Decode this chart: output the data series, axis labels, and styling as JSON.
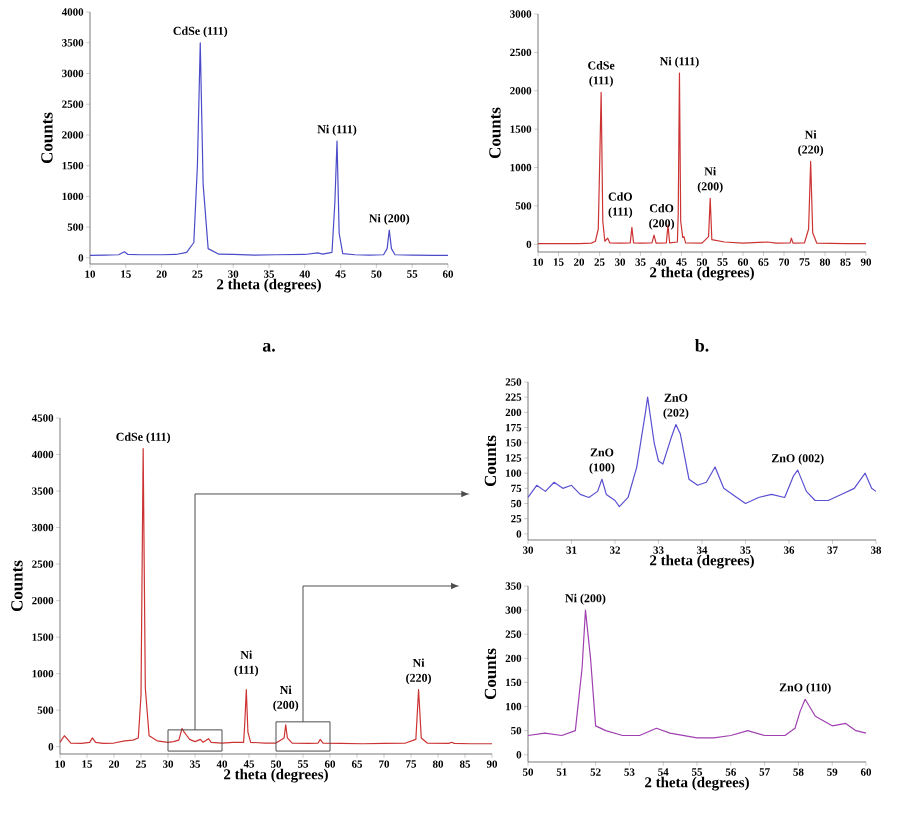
{
  "chart_data": [
    {
      "type": "line",
      "xlabel": "2 theta (degrees)",
      "ylabel": "Counts",
      "color": "#4b4bc8",
      "x": [
        10,
        12,
        14,
        14.8,
        15.3,
        17,
        20,
        22,
        23.5,
        24.5,
        25,
        25.4,
        25.8,
        26.5,
        28,
        30,
        33,
        36,
        40,
        41.8,
        42.5,
        43.8,
        44.2,
        44.5,
        44.8,
        45.3,
        47,
        49,
        51,
        51.5,
        51.8,
        52.1,
        52.6,
        55,
        58,
        60
      ],
      "values": [
        40,
        45,
        50,
        100,
        55,
        50,
        50,
        55,
        90,
        250,
        1500,
        3500,
        1200,
        150,
        60,
        55,
        45,
        50,
        55,
        80,
        60,
        90,
        900,
        1900,
        400,
        70,
        50,
        45,
        50,
        150,
        450,
        150,
        50,
        45,
        40,
        40
      ],
      "xlim": [
        10,
        60
      ],
      "xticks": [
        10,
        15,
        20,
        25,
        30,
        35,
        40,
        45,
        50,
        55,
        60
      ],
      "ylim": [
        -100,
        4000
      ],
      "yticks": [
        0,
        500,
        1000,
        1500,
        2000,
        2500,
        3000,
        3500,
        4000
      ],
      "annotations": [
        {
          "text": "CdSe (111)",
          "x": 25.4,
          "y": 3500
        },
        {
          "text": "Ni (111)",
          "x": 44.5,
          "y": 1900
        },
        {
          "text": "Ni (200)",
          "x": 51.8,
          "y": 450
        },
        "a."
      ]
    },
    {
      "type": "line",
      "xlabel": "2 theta (degrees)",
      "ylabel": "Counts",
      "color": "#cc3333",
      "x": [
        10,
        15,
        20,
        23,
        24,
        24.7,
        25.1,
        25.4,
        25.8,
        26.3,
        27,
        27.5,
        30,
        32.5,
        32.9,
        33.3,
        35,
        37.8,
        38.3,
        38.8,
        41.3,
        41.7,
        42.1,
        44,
        44.2,
        44.5,
        44.8,
        45.3,
        45.6,
        46,
        50,
        51.6,
        52,
        52.4,
        55.5,
        60,
        66,
        68,
        71.5,
        71.8,
        72.2,
        75,
        76,
        76.5,
        77,
        78,
        85,
        90
      ],
      "values": [
        10,
        10,
        10,
        15,
        40,
        200,
        1200,
        1980,
        300,
        40,
        80,
        20,
        15,
        20,
        220,
        20,
        15,
        20,
        120,
        15,
        20,
        250,
        20,
        30,
        400,
        2230,
        300,
        90,
        100,
        20,
        15,
        100,
        600,
        60,
        30,
        15,
        30,
        15,
        20,
        80,
        15,
        20,
        200,
        1080,
        150,
        15,
        10,
        10
      ],
      "xlim": [
        10,
        90
      ],
      "xticks": [
        10,
        15,
        20,
        25,
        30,
        35,
        40,
        45,
        50,
        55,
        60,
        65,
        70,
        75,
        80,
        85,
        90
      ],
      "ylim": [
        -100,
        3000
      ],
      "yticks": [
        0,
        500,
        1000,
        1500,
        2000,
        2500,
        3000
      ],
      "annotations": [
        {
          "text": "CdSe (111)",
          "x": 25.4,
          "y": 1980
        },
        {
          "text": "CdO (111)",
          "x": 32.9,
          "y": 220
        },
        {
          "text": "CdO (200)",
          "x": 38.3,
          "y": 120
        },
        {
          "text": "Ni (111)",
          "x": 44.5,
          "y": 2230
        },
        {
          "text": "Ni (200)",
          "x": 52,
          "y": 600
        },
        {
          "text": "Ni (220)",
          "x": 76.5,
          "y": 1080
        },
        "b."
      ]
    },
    {
      "type": "line",
      "xlabel": "2 theta (degrees)",
      "ylabel": "Counts",
      "color": "#cc3333",
      "x": [
        10,
        10.8,
        11.3,
        12,
        14,
        15.5,
        16,
        16.6,
        18,
        20,
        22,
        23.5,
        24.5,
        25,
        25.4,
        25.8,
        26.5,
        28,
        30,
        31,
        32,
        32.6,
        33,
        33.4,
        34,
        35,
        36,
        36.5,
        37.5,
        38,
        40,
        42,
        44,
        44.2,
        44.5,
        44.8,
        45.3,
        48,
        50,
        51.5,
        51.8,
        52.1,
        53,
        56,
        57.8,
        58.2,
        58.7,
        62,
        66,
        70,
        74,
        75.9,
        76.4,
        76.9,
        78,
        82,
        82.5,
        83,
        86,
        90
      ],
      "values": [
        60,
        150,
        110,
        50,
        45,
        60,
        120,
        60,
        45,
        50,
        80,
        90,
        120,
        700,
        4080,
        800,
        150,
        80,
        60,
        70,
        90,
        250,
        200,
        160,
        100,
        70,
        100,
        60,
        110,
        60,
        50,
        60,
        60,
        300,
        780,
        200,
        60,
        50,
        50,
        120,
        300,
        120,
        50,
        45,
        50,
        100,
        50,
        45,
        40,
        45,
        50,
        100,
        780,
        120,
        50,
        45,
        60,
        45,
        40,
        40
      ],
      "xlim": [
        10,
        90
      ],
      "xticks": [
        10,
        15,
        20,
        25,
        30,
        35,
        40,
        45,
        50,
        55,
        60,
        65,
        70,
        75,
        80,
        85,
        90
      ],
      "ylim": [
        -100,
        4500
      ],
      "yticks": [
        0,
        500,
        1000,
        1500,
        2000,
        2500,
        3000,
        3500,
        4000,
        4500
      ],
      "annotations": [
        {
          "text": "CdSe (111)",
          "x": 25.4,
          "y": 4080
        },
        {
          "text": "Ni (111)",
          "x": 44.5,
          "y": 780
        },
        {
          "text": "Ni (200)",
          "x": 51.8,
          "y": 300
        },
        {
          "text": "Ni (220)",
          "x": 76.4,
          "y": 780
        }
      ]
    },
    {
      "type": "line",
      "xlabel": "2 theta (degrees)",
      "ylabel": "Counts",
      "color": "#5a50d0",
      "x": [
        30,
        30.2,
        30.4,
        30.6,
        30.8,
        31,
        31.2,
        31.4,
        31.6,
        31.7,
        31.8,
        32,
        32.1,
        32.3,
        32.5,
        32.7,
        32.75,
        32.9,
        33,
        33.1,
        33.3,
        33.4,
        33.5,
        33.7,
        33.9,
        34.1,
        34.3,
        34.5,
        34.8,
        35,
        35.3,
        35.6,
        35.9,
        36.1,
        36.2,
        36.4,
        36.6,
        36.9,
        37.2,
        37.5,
        37.75,
        37.9,
        38
      ],
      "values": [
        60,
        80,
        70,
        85,
        75,
        80,
        65,
        60,
        70,
        90,
        65,
        55,
        45,
        60,
        110,
        200,
        225,
        150,
        120,
        115,
        160,
        180,
        165,
        90,
        80,
        85,
        110,
        75,
        60,
        50,
        60,
        65,
        60,
        95,
        105,
        70,
        55,
        55,
        65,
        75,
        100,
        75,
        70
      ],
      "xlim": [
        30,
        38
      ],
      "xticks": [
        30,
        31,
        32,
        33,
        34,
        35,
        36,
        37,
        38
      ],
      "ylim": [
        -10,
        250
      ],
      "yticks": [
        0,
        25,
        50,
        75,
        100,
        125,
        150,
        175,
        200,
        225,
        250
      ],
      "annotations": [
        {
          "text": "ZnO (100)",
          "x": 31.7,
          "y": 90
        },
        {
          "text": "ZnO (202)",
          "x": 33.4,
          "y": 180
        },
        {
          "text": "ZnO (002)",
          "x": 36.2,
          "y": 105
        }
      ]
    },
    {
      "type": "line",
      "xlabel": "2 theta (degrees)",
      "ylabel": "Counts",
      "color": "#a040b0",
      "x": [
        50,
        50.5,
        51,
        51.4,
        51.6,
        51.7,
        51.85,
        52,
        52.3,
        52.8,
        53.3,
        53.8,
        54.2,
        55,
        55.5,
        56,
        56.5,
        57,
        57.6,
        57.9,
        58.05,
        58.2,
        58.5,
        59,
        59.4,
        59.7,
        60
      ],
      "values": [
        40,
        45,
        40,
        50,
        180,
        300,
        200,
        60,
        50,
        40,
        40,
        55,
        45,
        35,
        35,
        40,
        50,
        40,
        40,
        55,
        90,
        115,
        80,
        60,
        65,
        50,
        45
      ],
      "xlim": [
        50,
        60
      ],
      "xticks": [
        50,
        51,
        52,
        53,
        54,
        55,
        56,
        57,
        58,
        59,
        60
      ],
      "ylim": [
        -15,
        350
      ],
      "yticks": [
        0,
        50,
        100,
        150,
        200,
        250,
        300,
        350
      ],
      "annotations": [
        {
          "text": "Ni (200)",
          "x": 51.7,
          "y": 300
        },
        {
          "text": "ZnO (110)",
          "x": 58.2,
          "y": 115
        }
      ]
    }
  ]
}
